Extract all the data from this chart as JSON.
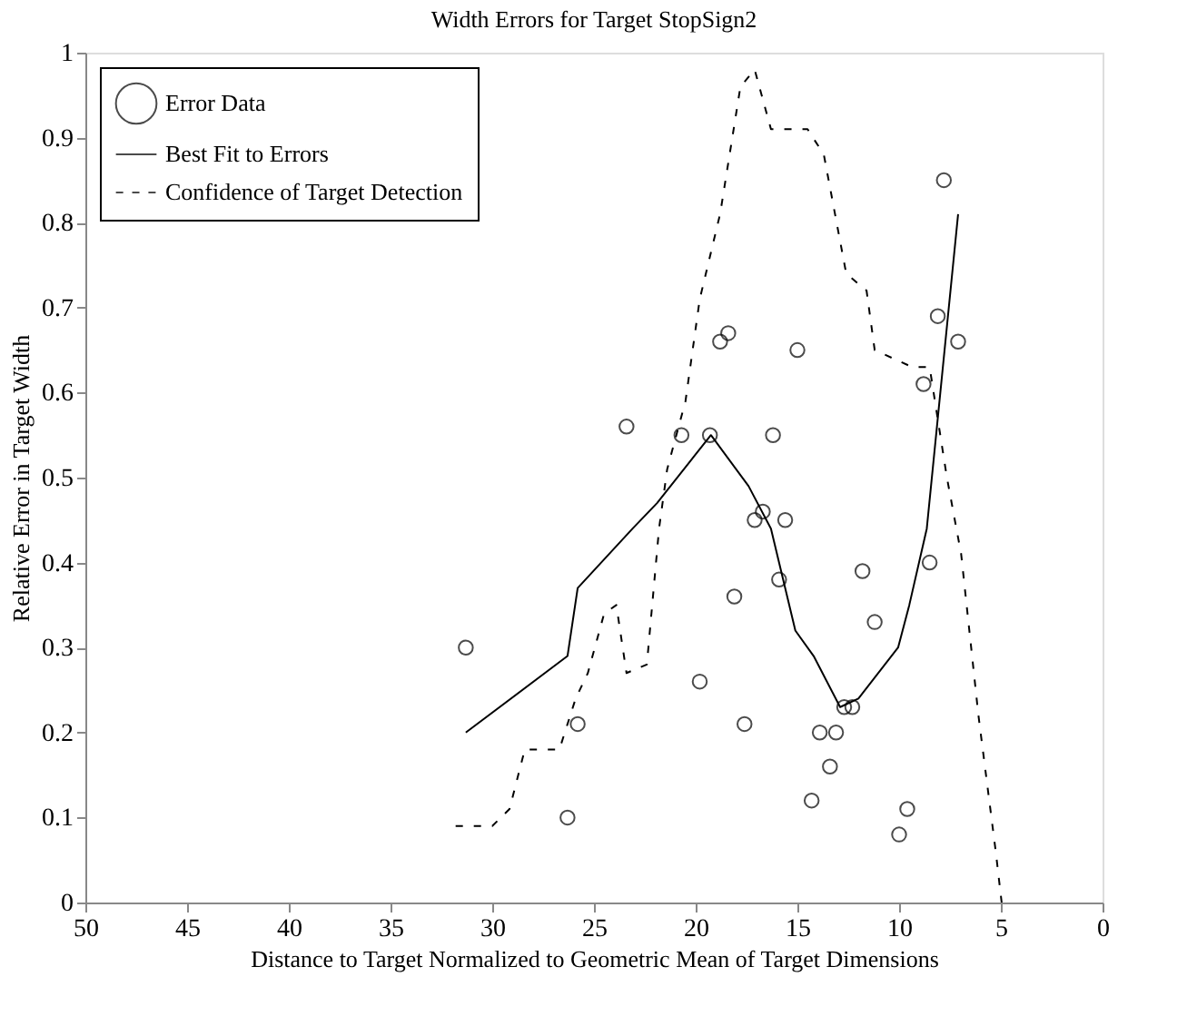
{
  "chart_data": {
    "type": "scatter",
    "title": "Width Errors for Target StopSign2",
    "xlabel": "Distance to Target Normalized to Geometric Mean of Target Dimensions",
    "ylabel": "Relative Error in Target Width",
    "xlim": [
      50,
      0
    ],
    "ylim": [
      0,
      1
    ],
    "xticks": [
      50,
      45,
      40,
      35,
      30,
      25,
      20,
      15,
      10,
      5,
      0
    ],
    "yticks": [
      {
        "value": 0,
        "label": "0"
      },
      0.1,
      0.2,
      0.3,
      0.4,
      0.5,
      0.6,
      0.7,
      0.8,
      0.9,
      {
        "value": 1,
        "label": "1"
      }
    ],
    "grid": false,
    "legend": "top left",
    "series": [
      {
        "name": "Error Data",
        "marker": "circle",
        "color": "#000000",
        "x": [
          31.3,
          25.8,
          26.3,
          19.8,
          17.6,
          18.1,
          15.9,
          11.8,
          11.2,
          8.5,
          13.9,
          13.1,
          13.4,
          14.3,
          12.7,
          12.3,
          9.6,
          10.0,
          7.8,
          8.1,
          7.1,
          8.8,
          18.8,
          18.4,
          15.0,
          23.4,
          20.7,
          19.3,
          16.2,
          17.1,
          16.7,
          15.6
        ],
        "values": [
          0.3,
          0.21,
          0.1,
          0.26,
          0.21,
          0.36,
          0.38,
          0.39,
          0.33,
          0.4,
          0.2,
          0.2,
          0.16,
          0.12,
          0.23,
          0.23,
          0.11,
          0.08,
          0.85,
          0.69,
          0.66,
          0.61,
          0.66,
          0.67,
          0.65,
          0.56,
          0.55,
          0.55,
          0.55,
          0.45,
          0.46,
          0.45
        ]
      },
      {
        "name": "Best Fit to Errors",
        "type": "line",
        "marker": "none",
        "line_style": "solid",
        "color": "#000000",
        "x": [
          31.3,
          26.3,
          25.8,
          23.1,
          21.9,
          19.25,
          17.4,
          16.3,
          15.1,
          14.2,
          12.9,
          12.0,
          10.05,
          9.5,
          8.64,
          7.1
        ],
        "values": [
          0.2,
          0.29,
          0.37,
          0.44,
          0.47,
          0.55,
          0.49,
          0.44,
          0.32,
          0.29,
          0.23,
          0.24,
          0.3,
          0.35,
          0.44,
          0.81
        ]
      },
      {
        "name": "Confidence of Target Detection",
        "type": "line",
        "marker": "none",
        "line_style": "dashed",
        "color": "#000000",
        "x": [
          31.8,
          30.0,
          29.15,
          28.4,
          26.7,
          25.9,
          25.3,
          24.5,
          23.9,
          23.4,
          22.4,
          21.8,
          21.4,
          20.5,
          19.8,
          18.8,
          17.8,
          17.1,
          16.3,
          14.5,
          13.7,
          12.6,
          11.6,
          11.2,
          9.35,
          8.5,
          7.65,
          6.95,
          6.1,
          5.25,
          4.96
        ],
        "values": [
          0.09,
          0.09,
          0.11,
          0.18,
          0.18,
          0.24,
          0.27,
          0.34,
          0.35,
          0.27,
          0.28,
          0.44,
          0.51,
          0.59,
          0.71,
          0.81,
          0.96,
          0.98,
          0.91,
          0.91,
          0.88,
          0.74,
          0.72,
          0.65,
          0.63,
          0.63,
          0.5,
          0.41,
          0.22,
          0.06,
          0.0
        ]
      }
    ]
  }
}
